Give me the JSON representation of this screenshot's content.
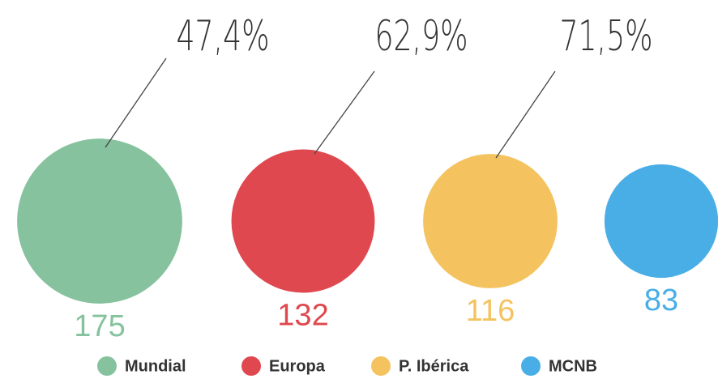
{
  "chart_data": {
    "type": "bubble",
    "categories": [
      "Mundial",
      "Europa",
      "P. Ibérica",
      "MCNB"
    ],
    "values": [
      175,
      132,
      116,
      83
    ],
    "colors": [
      "#86c29d",
      "#e0484f",
      "#f4c35f",
      "#4aaee6"
    ],
    "annotations": [
      "47,4%",
      "62,9%",
      "71,5%"
    ],
    "legend": "bottom"
  }
}
